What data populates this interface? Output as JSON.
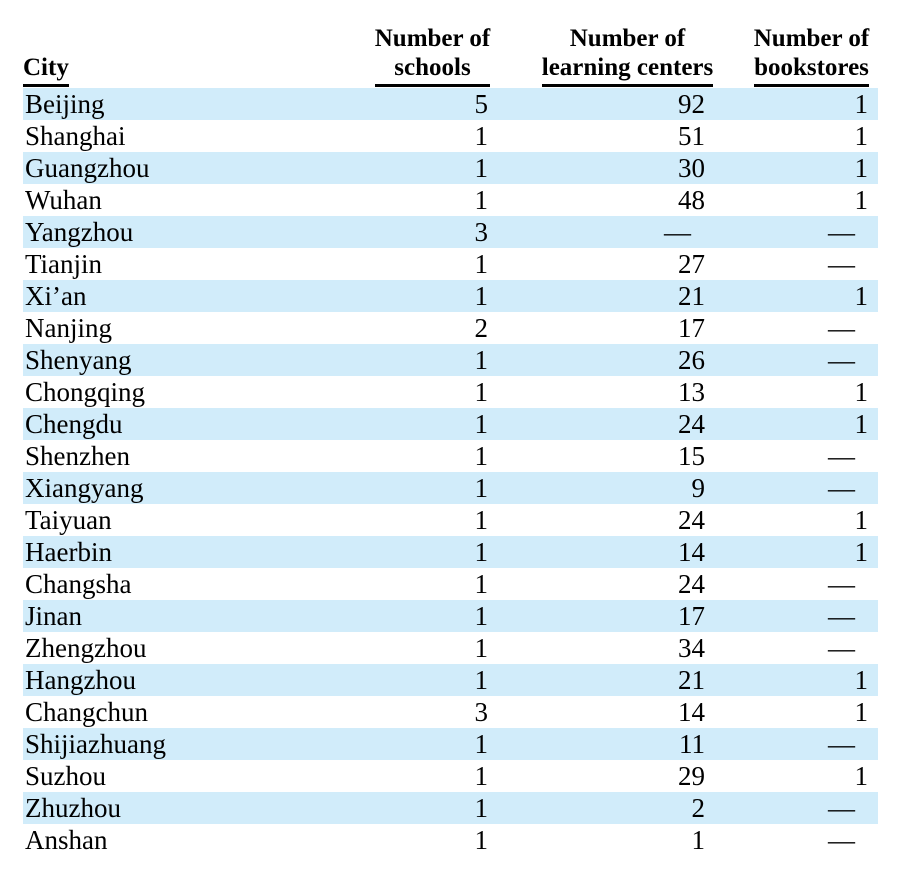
{
  "page": {
    "background": "#ffffff"
  },
  "colors": {
    "stripe": "#d1ecfa",
    "text": "#000000",
    "header_rule": "#000000"
  },
  "table": {
    "empty_marker": "—",
    "headers": [
      {
        "line1": "City",
        "line2": ""
      },
      {
        "line1": "Number of",
        "line2": "schools"
      },
      {
        "line1": "Number of",
        "line2": "learning centers"
      },
      {
        "line1": "Number of",
        "line2": "bookstores"
      }
    ],
    "rows": [
      {
        "city": "Beijing",
        "schools": "5",
        "learning_centers": "92",
        "bookstores": "1"
      },
      {
        "city": "Shanghai",
        "schools": "1",
        "learning_centers": "51",
        "bookstores": "1"
      },
      {
        "city": "Guangzhou",
        "schools": "1",
        "learning_centers": "30",
        "bookstores": "1"
      },
      {
        "city": "Wuhan",
        "schools": "1",
        "learning_centers": "48",
        "bookstores": "1"
      },
      {
        "city": "Yangzhou",
        "schools": "3",
        "learning_centers": "—",
        "bookstores": "—"
      },
      {
        "city": "Tianjin",
        "schools": "1",
        "learning_centers": "27",
        "bookstores": "—"
      },
      {
        "city": "Xi’an",
        "schools": "1",
        "learning_centers": "21",
        "bookstores": "1"
      },
      {
        "city": "Nanjing",
        "schools": "2",
        "learning_centers": "17",
        "bookstores": "—"
      },
      {
        "city": "Shenyang",
        "schools": "1",
        "learning_centers": "26",
        "bookstores": "—"
      },
      {
        "city": "Chongqing",
        "schools": "1",
        "learning_centers": "13",
        "bookstores": "1"
      },
      {
        "city": "Chengdu",
        "schools": "1",
        "learning_centers": "24",
        "bookstores": "1"
      },
      {
        "city": "Shenzhen",
        "schools": "1",
        "learning_centers": "15",
        "bookstores": "—"
      },
      {
        "city": "Xiangyang",
        "schools": "1",
        "learning_centers": "9",
        "bookstores": "—"
      },
      {
        "city": "Taiyuan",
        "schools": "1",
        "learning_centers": "24",
        "bookstores": "1"
      },
      {
        "city": "Haerbin",
        "schools": "1",
        "learning_centers": "14",
        "bookstores": "1"
      },
      {
        "city": "Changsha",
        "schools": "1",
        "learning_centers": "24",
        "bookstores": "—"
      },
      {
        "city": "Jinan",
        "schools": "1",
        "learning_centers": "17",
        "bookstores": "—"
      },
      {
        "city": "Zhengzhou",
        "schools": "1",
        "learning_centers": "34",
        "bookstores": "—"
      },
      {
        "city": "Hangzhou",
        "schools": "1",
        "learning_centers": "21",
        "bookstores": "1"
      },
      {
        "city": "Changchun",
        "schools": "3",
        "learning_centers": "14",
        "bookstores": "1"
      },
      {
        "city": "Shijiazhuang",
        "schools": "1",
        "learning_centers": "11",
        "bookstores": "—"
      },
      {
        "city": "Suzhou",
        "schools": "1",
        "learning_centers": "29",
        "bookstores": "1"
      },
      {
        "city": "Zhuzhou",
        "schools": "1",
        "learning_centers": "2",
        "bookstores": "—"
      },
      {
        "city": "Anshan",
        "schools": "1",
        "learning_centers": "1",
        "bookstores": "—"
      }
    ]
  },
  "chart_data": {
    "type": "table",
    "columns": [
      "City",
      "Number of schools",
      "Number of learning centers",
      "Number of bookstores"
    ],
    "rows": [
      [
        "Beijing",
        "5",
        "92",
        "1"
      ],
      [
        "Shanghai",
        "1",
        "51",
        "1"
      ],
      [
        "Guangzhou",
        "1",
        "30",
        "1"
      ],
      [
        "Wuhan",
        "1",
        "48",
        "1"
      ],
      [
        "Yangzhou",
        "3",
        "—",
        "—"
      ],
      [
        "Tianjin",
        "1",
        "27",
        "—"
      ],
      [
        "Xi’an",
        "1",
        "21",
        "1"
      ],
      [
        "Nanjing",
        "2",
        "17",
        "—"
      ],
      [
        "Shenyang",
        "1",
        "26",
        "—"
      ],
      [
        "Chongqing",
        "1",
        "13",
        "1"
      ],
      [
        "Chengdu",
        "1",
        "24",
        "1"
      ],
      [
        "Shenzhen",
        "1",
        "15",
        "—"
      ],
      [
        "Xiangyang",
        "1",
        "9",
        "—"
      ],
      [
        "Taiyuan",
        "1",
        "24",
        "1"
      ],
      [
        "Haerbin",
        "1",
        "14",
        "1"
      ],
      [
        "Changsha",
        "1",
        "24",
        "—"
      ],
      [
        "Jinan",
        "1",
        "17",
        "—"
      ],
      [
        "Zhengzhou",
        "1",
        "34",
        "—"
      ],
      [
        "Hangzhou",
        "1",
        "21",
        "1"
      ],
      [
        "Changchun",
        "3",
        "14",
        "1"
      ],
      [
        "Shijiazhuang",
        "1",
        "11",
        "—"
      ],
      [
        "Suzhou",
        "1",
        "29",
        "1"
      ],
      [
        "Zhuzhou",
        "1",
        "2",
        "—"
      ],
      [
        "Anshan",
        "1",
        "1",
        "—"
      ]
    ]
  }
}
